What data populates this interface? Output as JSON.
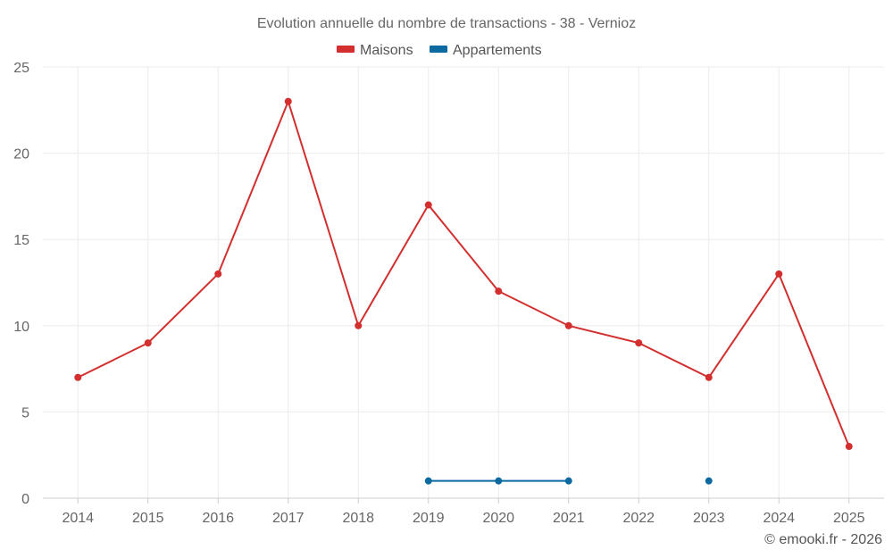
{
  "chart_data": {
    "type": "line",
    "title": "Evolution annuelle du nombre de transactions - 38 - Vernioz",
    "categories": [
      "2014",
      "2015",
      "2016",
      "2017",
      "2018",
      "2019",
      "2020",
      "2021",
      "2022",
      "2023",
      "2024",
      "2025"
    ],
    "ylim": [
      0,
      25
    ],
    "yticks": [
      0,
      5,
      10,
      15,
      20,
      25
    ],
    "grid": true,
    "legend_position": "top-center",
    "series": [
      {
        "name": "Maisons",
        "color": "#d32f2f",
        "values": [
          7,
          9,
          13,
          23,
          10,
          17,
          12,
          10,
          9,
          7,
          13,
          3
        ]
      },
      {
        "name": "Appartements",
        "color": "#0d6aa0",
        "values": [
          null,
          null,
          null,
          null,
          null,
          1,
          1,
          1,
          null,
          1,
          null,
          null
        ]
      }
    ]
  },
  "credit": "© emooki.fr - 2026"
}
